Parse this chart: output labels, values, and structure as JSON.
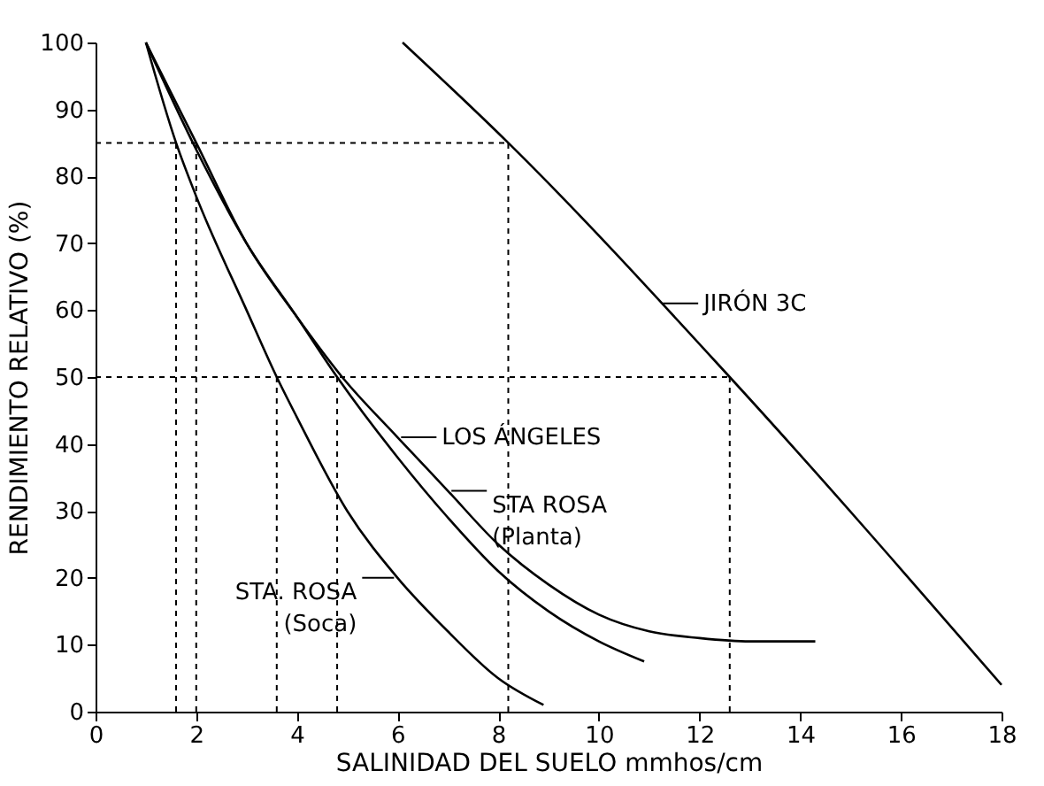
{
  "chart_data": {
    "type": "line",
    "xlabel": "SALINIDAD DEL SUELO  mmhos/cm",
    "ylabel": "RENDIMIENTO RELATIVO (%)",
    "xlim": [
      0,
      18
    ],
    "xticks": [
      0,
      2,
      4,
      6,
      8,
      10,
      12,
      14,
      16,
      18
    ],
    "ylim": [
      0,
      100
    ],
    "yticks": [
      0,
      10,
      20,
      30,
      40,
      50,
      60,
      70,
      80,
      90,
      100
    ],
    "grid": false,
    "marker": "none",
    "series": [
      {
        "color": "#000000",
        "line_style": "solid",
        "x": [
          6.1,
          8.2,
          12.6,
          18
        ],
        "values": [
          100,
          85,
          50,
          4
        ]
      },
      {
        "color": "#000000",
        "line_style": "solid",
        "x": [
          1,
          2,
          3,
          4,
          4.9,
          6,
          7,
          8,
          9,
          10,
          11,
          12,
          13,
          14.3
        ],
        "values": [
          100,
          85,
          70,
          59,
          50,
          41,
          33,
          25,
          19,
          14.5,
          12,
          11,
          10.5,
          10.5
        ]
      },
      {
        "color": "#000000",
        "line_style": "solid",
        "x": [
          1,
          2,
          3,
          4,
          4.8,
          6,
          7,
          8,
          9,
          10,
          10.9
        ],
        "values": [
          100,
          84,
          70,
          59,
          50,
          38,
          29,
          21,
          15,
          10.5,
          7.5
        ]
      },
      {
        "color": "#000000",
        "line_style": "solid",
        "x": [
          1,
          1.6,
          2,
          3,
          3.6,
          4,
          5,
          6,
          7,
          8,
          8.9
        ],
        "values": [
          100,
          85,
          77,
          60,
          50,
          44,
          30,
          20,
          12,
          5,
          1
        ]
      },
      {
        "color": "#000000",
        "line_style": "dashed",
        "x": [
          0,
          8.2
        ],
        "values": [
          85,
          85
        ]
      },
      {
        "color": "#000000",
        "line_style": "dashed",
        "x": [
          0,
          12.6
        ],
        "values": [
          50,
          50
        ]
      },
      {
        "color": "#000000",
        "line_style": "dashed",
        "x": [
          1.6,
          1.6
        ],
        "values": [
          0,
          85
        ]
      },
      {
        "color": "#000000",
        "line_style": "dashed",
        "x": [
          2,
          2
        ],
        "values": [
          0,
          85
        ]
      },
      {
        "color": "#000000",
        "line_style": "dashed",
        "x": [
          3.6,
          3.6
        ],
        "values": [
          0,
          50
        ]
      },
      {
        "color": "#000000",
        "line_style": "dashed",
        "x": [
          4.8,
          4.8
        ],
        "values": [
          0,
          50
        ]
      },
      {
        "color": "#000000",
        "line_style": "dashed",
        "x": [
          8.2,
          8.2
        ],
        "values": [
          0,
          85
        ]
      },
      {
        "color": "#000000",
        "line_style": "dashed",
        "x": [
          12.6,
          12.6
        ],
        "values": [
          0,
          50
        ]
      }
    ],
    "annotations": [
      {
        "text": "JIRÓN 3C",
        "x": 11.2,
        "y": 61
      },
      {
        "text": "LOS ÁNGELES",
        "x": 6,
        "y": 41
      },
      {
        "text": "STA ROSA\n(Planta)",
        "x": 7,
        "y": 33
      },
      {
        "text": "STA. ROSA\n(Soca)",
        "x": 6,
        "y": 20
      }
    ]
  }
}
